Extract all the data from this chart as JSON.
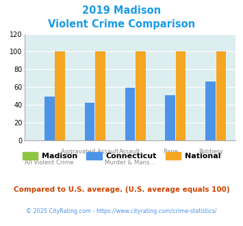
{
  "title_line1": "2019 Madison",
  "title_line2": "Violent Crime Comparison",
  "madison_values": [
    0,
    0,
    0,
    0,
    0
  ],
  "connecticut_values": [
    49,
    42,
    59,
    51,
    66
  ],
  "national_values": [
    100,
    100,
    100,
    100,
    100
  ],
  "madison_color": "#8dc63f",
  "connecticut_color": "#4d94e8",
  "national_color": "#f5a623",
  "bg_color": "#ddeef0",
  "ylim": [
    0,
    120
  ],
  "yticks": [
    0,
    20,
    40,
    60,
    80,
    100,
    120
  ],
  "title_color": "#1a9be6",
  "xtick_top": [
    "",
    "Aggravated Assault",
    "Assault",
    "Rape",
    "Robbery"
  ],
  "xtick_bottom": [
    "All Violent Crime",
    "",
    "Murder & Mans...",
    "",
    ""
  ],
  "legend_labels": [
    "Madison",
    "Connecticut",
    "National"
  ],
  "footnote1": "Compared to U.S. average. (U.S. average equals 100)",
  "footnote2": "© 2025 CityRating.com - https://www.cityrating.com/crime-statistics/",
  "footnote1_color": "#cc4400",
  "footnote2_color": "#4d94e8"
}
